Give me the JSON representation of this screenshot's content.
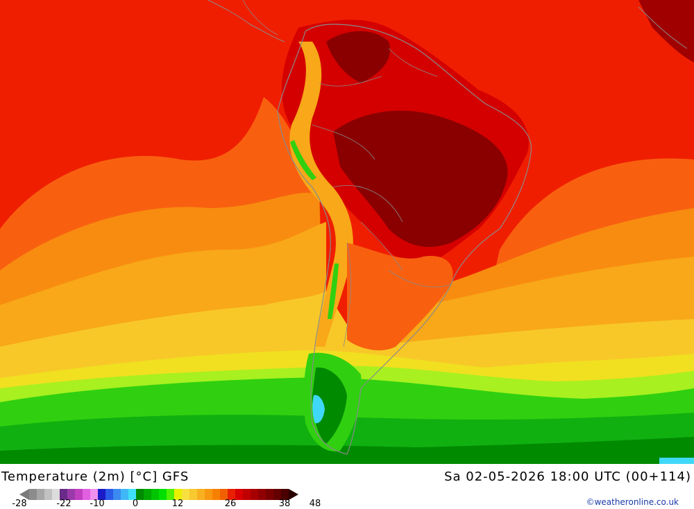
{
  "title_left": "Temperature (2m) [°C] GFS",
  "title_right": "Sa 02-05-2026 18:00 UTC (00+114)",
  "credit": "©weatheronline.co.uk",
  "legend": {
    "ticks": [
      "-28",
      "-22",
      "-10",
      "0",
      "12",
      "26",
      "38",
      "48"
    ],
    "colors": [
      "#8c8c8c",
      "#a6a6a6",
      "#c2c2c2",
      "#dcdcdc",
      "#6a2a8a",
      "#9a3aaa",
      "#c040c0",
      "#e060e0",
      "#f090f0",
      "#1a1ac8",
      "#2a5ae8",
      "#3a8af0",
      "#40b8f8",
      "#40e0f8",
      "#008a00",
      "#00a800",
      "#00c400",
      "#00e000",
      "#50f000",
      "#e8f000",
      "#f8e040",
      "#f8c830",
      "#f8b020",
      "#f89810",
      "#f88000",
      "#f06000",
      "#e82000",
      "#d80000",
      "#c00000",
      "#a80000",
      "#900000",
      "#7a0000",
      "#640000",
      "#4a0000"
    ]
  },
  "colors": {
    "hot_dark": "#8a0000",
    "hot": "#d40000",
    "red": "#f01e00",
    "orange_red": "#f86010",
    "orange": "#f88c10",
    "orange_light": "#f8a818",
    "yellow_orange": "#f8c828",
    "yellow": "#f0e020",
    "lime": "#a8f020",
    "green": "#30d010",
    "green_mid": "#10b010",
    "green_dark": "#008a00",
    "cyan": "#40d8f8",
    "border_gray": "#8a8a8a"
  }
}
